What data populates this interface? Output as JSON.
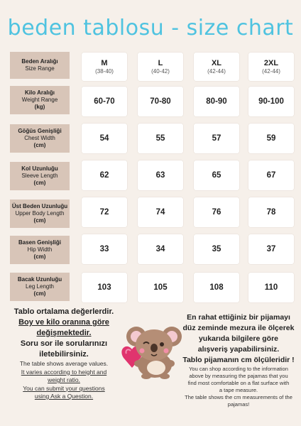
{
  "title": "beden tablosu - size chart",
  "header": {
    "label_tr": "Beden Aralığı",
    "label_en": "Size Range",
    "sizes": [
      {
        "size": "M",
        "range": "(38-40)"
      },
      {
        "size": "L",
        "range": "(40-42)"
      },
      {
        "size": "XL",
        "range": "(42-44)"
      },
      {
        "size": "2XL",
        "range": "(42-44)"
      }
    ]
  },
  "rows": [
    {
      "tr": "Kilo Aralığı",
      "en": "Weight Range",
      "unit": "(kg)",
      "values": [
        "60-70",
        "70-80",
        "80-90",
        "90-100"
      ]
    },
    {
      "tr": "Göğüs Genişliği",
      "en": "Chest Width",
      "unit": "(cm)",
      "values": [
        "54",
        "55",
        "57",
        "59"
      ]
    },
    {
      "tr": "Kol Uzunluğu",
      "en": "Sleeve Length",
      "unit": "(cm)",
      "values": [
        "62",
        "63",
        "65",
        "67"
      ]
    },
    {
      "tr": "Üst Beden Uzunluğu",
      "en": "Upper Body Length",
      "unit": "(cm)",
      "values": [
        "72",
        "74",
        "76",
        "78"
      ]
    },
    {
      "tr": "Basen Genişliği",
      "en": "Hip Width",
      "unit": "(cm)",
      "values": [
        "33",
        "34",
        "35",
        "37"
      ]
    },
    {
      "tr": "Bacak Uzunluğu",
      "en": "Leg Length",
      "unit": "(cm)",
      "values": [
        "103",
        "105",
        "108",
        "110"
      ]
    }
  ],
  "notes_left": {
    "tr_1": "Tablo ortalama değerlerdir.",
    "tr_2": "Boy ve kilo oranına göre",
    "tr_3": "değişmektedir.",
    "tr_4": "Soru sor ile sorularınızı",
    "tr_5": "iletebilirsiniz.",
    "en_1": "The table shows average values.",
    "en_2": "It varies according to height and",
    "en_3": "weight ratio.",
    "en_4": "You can submit your questions",
    "en_5": "using Ask a Question."
  },
  "notes_right": {
    "tr_1": "En rahat ettiğiniz bir pijamayı",
    "tr_2": "düz zeminde mezura ile ölçerek",
    "tr_3": "yukarıda bilgilere göre",
    "tr_4": "alışveriş yapabilirsiniz.",
    "tr_5": "Tablo pijamanın cm ölçüleridir !",
    "en_1": "You can shop according to the information",
    "en_2": "above by measuring the pajamas that you",
    "en_3": "find most comfortable on a flat surface with",
    "en_4": "a tape measure.",
    "en_5": "The table shows the cm measurements of the",
    "en_6": "pajamas!"
  },
  "mascot": {
    "icon": "koala-with-heart-icon"
  },
  "colors": {
    "title": "#4fc3e0",
    "label_bg": "#d8c5b8",
    "cell_bg": "#ffffff",
    "page_bg": "#f6f0ea"
  }
}
